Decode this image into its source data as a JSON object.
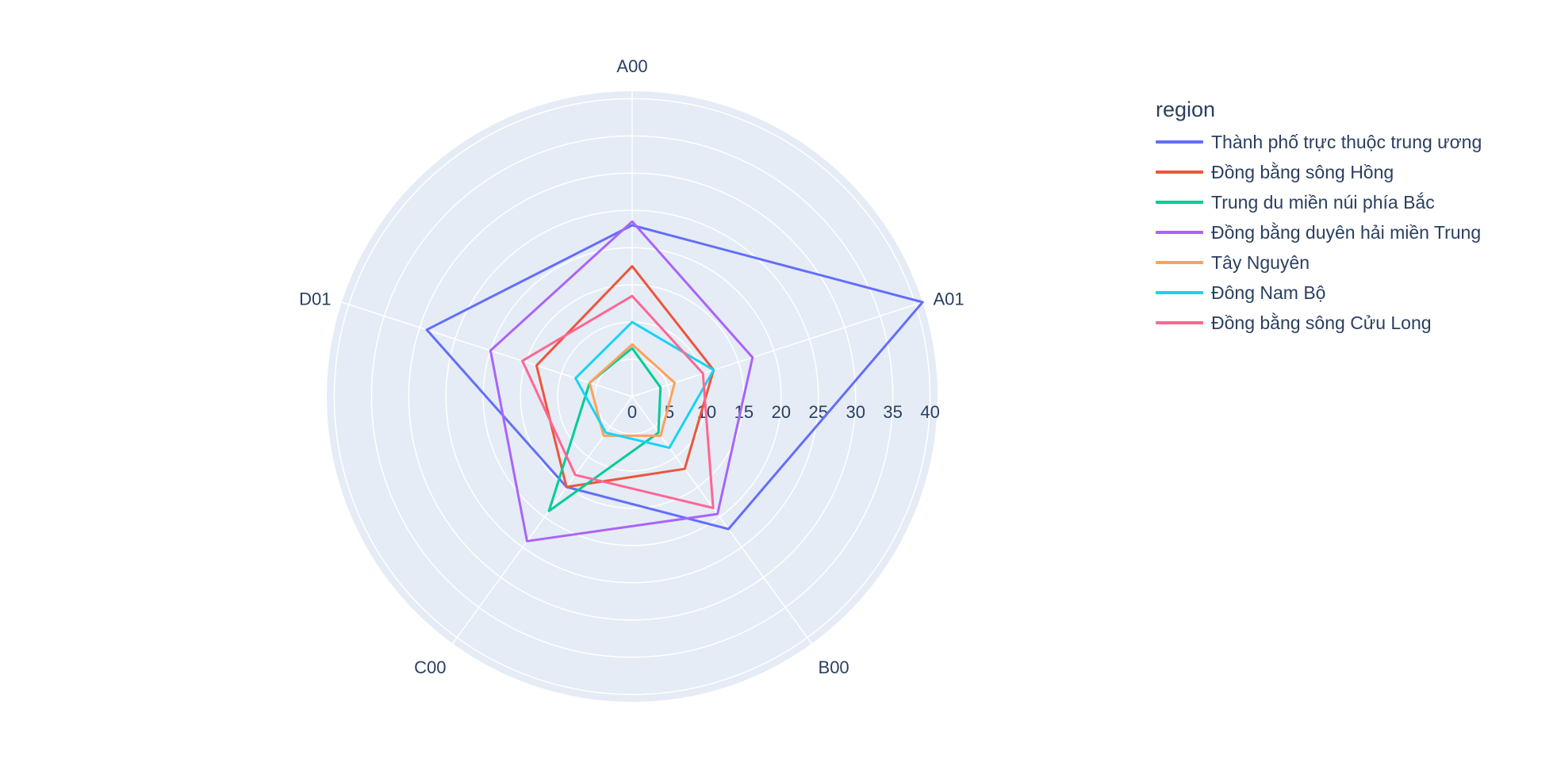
{
  "chart_data": {
    "type": "radar",
    "axes": [
      "A00",
      "A01",
      "B00",
      "C00",
      "D01"
    ],
    "radial_ticks": [
      "0",
      "5",
      "10",
      "15",
      "20",
      "25",
      "30",
      "35",
      "40"
    ],
    "radial_range": [
      0,
      41
    ],
    "grid": true,
    "legend_position": "right",
    "legend_title": "region",
    "series": [
      {
        "name": "Thành phố trực thuộc trung ương",
        "color": "#636efa",
        "values": [
          23,
          41,
          22,
          15,
          29
        ]
      },
      {
        "name": "Đồng bằng sông Hồng",
        "color": "#EF553B",
        "values": [
          17.5,
          11.5,
          12,
          15,
          13.5
        ]
      },
      {
        "name": "Trung du miền núi phía Bắc",
        "color": "#00cc96",
        "values": [
          6.5,
          4,
          6,
          19,
          6
        ]
      },
      {
        "name": "Đồng bằng duyên hải miền Trung",
        "color": "#ab63fa",
        "values": [
          23.5,
          17,
          19.5,
          24,
          20
        ]
      },
      {
        "name": "Tây Nguyên",
        "color": "#FFA15A",
        "values": [
          7,
          6,
          6.5,
          6.5,
          6
        ]
      },
      {
        "name": "Đông Nam Bộ",
        "color": "#19d3f3",
        "values": [
          10,
          11.5,
          8.5,
          6,
          8
        ]
      },
      {
        "name": "Đồng bằng sông Cửu Long",
        "color": "#FF6692",
        "values": [
          13.5,
          10,
          18.5,
          13,
          15.5
        ]
      }
    ]
  }
}
